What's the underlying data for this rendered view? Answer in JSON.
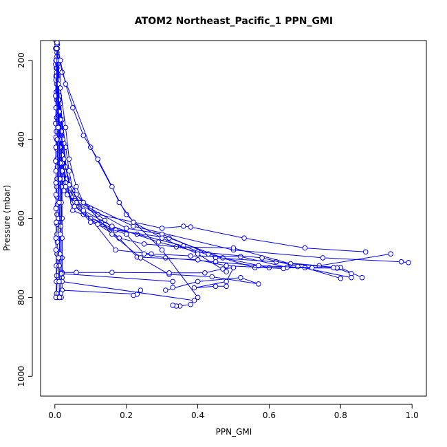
{
  "chart_data": {
    "type": "line",
    "title": "ATOM2 Northeast_Pacific_1 PPN_GMI",
    "xlabel": "PPN_GMI",
    "ylabel": "Pressure (mbar)",
    "xlim": [
      -0.04,
      1.04
    ],
    "ylim": [
      1050,
      150
    ],
    "y_reversed": true,
    "x_ticks": [
      0.0,
      0.2,
      0.4,
      0.6,
      0.8,
      1.0
    ],
    "x_tick_labels": [
      "0.0",
      "0.2",
      "0.4",
      "0.6",
      "0.8",
      "1.0"
    ],
    "y_ticks": [
      200,
      400,
      600,
      800,
      1000
    ],
    "y_tick_labels": [
      "200",
      "400",
      "600",
      "800",
      "1000"
    ],
    "grid": false,
    "marker": "open-circle",
    "series_color": "#0000ff",
    "series": [
      {
        "values": [
          [
            0.003,
            150
          ],
          [
            0.004,
            170
          ],
          [
            0.003,
            200
          ],
          [
            0.004,
            220
          ],
          [
            0.003,
            240
          ],
          [
            0.005,
            260
          ],
          [
            0.004,
            280
          ],
          [
            0.005,
            300
          ],
          [
            0.006,
            320
          ],
          [
            0.005,
            345
          ],
          [
            0.006,
            360
          ],
          [
            0.004,
            380
          ],
          [
            0.005,
            400
          ],
          [
            0.006,
            425
          ],
          [
            0.006,
            450
          ],
          [
            0.007,
            470
          ],
          [
            0.006,
            500
          ],
          [
            0.005,
            520
          ],
          [
            0.006,
            545
          ],
          [
            0.007,
            565
          ],
          [
            0.006,
            590
          ],
          [
            0.006,
            615
          ],
          [
            0.006,
            640
          ],
          [
            0.007,
            660
          ],
          [
            0.006,
            690
          ],
          [
            0.006,
            720
          ],
          [
            0.005,
            745
          ],
          [
            0.006,
            760
          ],
          [
            0.005,
            790
          ],
          [
            0.006,
            800
          ]
        ]
      },
      {
        "values": [
          [
            0.002,
            170
          ],
          [
            0.002,
            210
          ],
          [
            0.003,
            250
          ],
          [
            0.002,
            290
          ],
          [
            0.003,
            320
          ],
          [
            0.002,
            360
          ],
          [
            0.003,
            395
          ],
          [
            0.003,
            420
          ],
          [
            0.002,
            455
          ],
          [
            0.003,
            480
          ],
          [
            0.003,
            510
          ],
          [
            0.003,
            540
          ],
          [
            0.003,
            575
          ],
          [
            0.004,
            610
          ],
          [
            0.003,
            650
          ],
          [
            0.003,
            680
          ],
          [
            0.004,
            720
          ],
          [
            0.004,
            760
          ],
          [
            0.003,
            800
          ]
        ]
      },
      {
        "values": [
          [
            0.006,
            155
          ],
          [
            0.008,
            200
          ],
          [
            0.009,
            250
          ],
          [
            0.01,
            300
          ],
          [
            0.011,
            350
          ],
          [
            0.012,
            400
          ],
          [
            0.015,
            450
          ],
          [
            0.02,
            500
          ],
          [
            0.025,
            530
          ],
          [
            0.05,
            555
          ],
          [
            0.12,
            590
          ],
          [
            0.3,
            625
          ],
          [
            0.36,
            620
          ],
          [
            0.38,
            622
          ],
          [
            0.53,
            650
          ],
          [
            0.7,
            675
          ],
          [
            0.87,
            685
          ]
        ]
      },
      {
        "values": [
          [
            0.006,
            160
          ],
          [
            0.008,
            210
          ],
          [
            0.012,
            300
          ],
          [
            0.015,
            380
          ],
          [
            0.02,
            450
          ],
          [
            0.03,
            500
          ],
          [
            0.04,
            520
          ],
          [
            0.08,
            560
          ],
          [
            0.22,
            620
          ],
          [
            0.5,
            680
          ],
          [
            0.75,
            700
          ],
          [
            0.97,
            710
          ],
          [
            0.99,
            712
          ]
        ]
      },
      {
        "values": [
          [
            0.006,
            160
          ],
          [
            0.01,
            240
          ],
          [
            0.02,
            350
          ],
          [
            0.03,
            420
          ],
          [
            0.04,
            480
          ],
          [
            0.05,
            530
          ],
          [
            0.06,
            540
          ],
          [
            0.1,
            575
          ],
          [
            0.14,
            605
          ],
          [
            0.16,
            625
          ],
          [
            0.23,
            640
          ],
          [
            0.36,
            670
          ],
          [
            0.45,
            700
          ],
          [
            0.62,
            710
          ],
          [
            0.74,
            720
          ],
          [
            0.94,
            690
          ]
        ]
      },
      {
        "values": [
          [
            0.006,
            170
          ],
          [
            0.012,
            270
          ],
          [
            0.018,
            390
          ],
          [
            0.025,
            470
          ],
          [
            0.04,
            540
          ],
          [
            0.05,
            580
          ],
          [
            0.13,
            610
          ],
          [
            0.18,
            650
          ],
          [
            0.25,
            665
          ],
          [
            0.34,
            672
          ],
          [
            0.5,
            675
          ],
          [
            0.66,
            715
          ],
          [
            0.8,
            725
          ],
          [
            0.86,
            750
          ]
        ]
      },
      {
        "values": [
          [
            0.007,
            200
          ],
          [
            0.015,
            310
          ],
          [
            0.025,
            410
          ],
          [
            0.035,
            500
          ],
          [
            0.055,
            555
          ],
          [
            0.08,
            590
          ],
          [
            0.17,
            630
          ],
          [
            0.32,
            650
          ],
          [
            0.47,
            700
          ],
          [
            0.6,
            725
          ],
          [
            0.79,
            726
          ],
          [
            0.83,
            740
          ]
        ]
      },
      {
        "values": [
          [
            0.006,
            180
          ],
          [
            0.013,
            290
          ],
          [
            0.022,
            400
          ],
          [
            0.03,
            470
          ],
          [
            0.045,
            525
          ],
          [
            0.07,
            560
          ],
          [
            0.2,
            625
          ],
          [
            0.3,
            640
          ],
          [
            0.43,
            690
          ],
          [
            0.56,
            725
          ],
          [
            0.7,
            725
          ],
          [
            0.8,
            752
          ]
        ]
      },
      {
        "values": [
          [
            0.005,
            230
          ],
          [
            0.01,
            340
          ],
          [
            0.016,
            430
          ],
          [
            0.022,
            500
          ],
          [
            0.035,
            540
          ],
          [
            0.06,
            560
          ],
          [
            0.1,
            600
          ],
          [
            0.17,
            680
          ],
          [
            0.27,
            690
          ],
          [
            0.38,
            695
          ],
          [
            0.52,
            697
          ],
          [
            0.65,
            724
          ],
          [
            0.79,
            725
          ]
        ]
      },
      {
        "values": [
          [
            0.006,
            190
          ],
          [
            0.01,
            280
          ],
          [
            0.018,
            380
          ],
          [
            0.025,
            450
          ],
          [
            0.04,
            515
          ],
          [
            0.08,
            580
          ],
          [
            0.16,
            620
          ],
          [
            0.29,
            660
          ],
          [
            0.4,
            685
          ],
          [
            0.58,
            700
          ],
          [
            0.68,
            722
          ],
          [
            0.83,
            750
          ]
        ]
      },
      {
        "values": [
          [
            0.006,
            220
          ],
          [
            0.012,
            330
          ],
          [
            0.02,
            440
          ],
          [
            0.03,
            510
          ],
          [
            0.05,
            560
          ],
          [
            0.1,
            610
          ],
          [
            0.2,
            640
          ],
          [
            0.25,
            690
          ],
          [
            0.31,
            700
          ],
          [
            0.45,
            710
          ],
          [
            0.57,
            720
          ],
          [
            0.72,
            725
          ],
          [
            0.78,
            725
          ]
        ]
      },
      {
        "values": [
          [
            0.005,
            240
          ],
          [
            0.011,
            360
          ],
          [
            0.02,
            460
          ],
          [
            0.03,
            520
          ],
          [
            0.055,
            570
          ],
          [
            0.12,
            615
          ],
          [
            0.18,
            650
          ],
          [
            0.23,
            698
          ],
          [
            0.4,
            705
          ],
          [
            0.48,
            720
          ],
          [
            0.64,
            727
          ]
        ]
      },
      {
        "values": [
          [
            0.007,
            160
          ],
          [
            0.02,
            230
          ],
          [
            0.1,
            420
          ],
          [
            0.2,
            590
          ],
          [
            0.3,
            680
          ],
          [
            0.4,
            800
          ]
        ]
      },
      {
        "values": [
          [
            0.006,
            170
          ],
          [
            0.015,
            270
          ],
          [
            0.03,
            370
          ],
          [
            0.04,
            450
          ],
          [
            0.06,
            520
          ],
          [
            0.08,
            560
          ],
          [
            0.16,
            640
          ],
          [
            0.24,
            700
          ],
          [
            0.32,
            742
          ],
          [
            0.44,
            748
          ],
          [
            0.57,
            766
          ],
          [
            0.52,
            750
          ],
          [
            0.4,
            760
          ],
          [
            0.31,
            782
          ]
        ]
      },
      {
        "values": [
          [
            0.006,
            150
          ],
          [
            0.015,
            200
          ],
          [
            0.03,
            260
          ],
          [
            0.05,
            320
          ],
          [
            0.08,
            390
          ],
          [
            0.12,
            450
          ],
          [
            0.16,
            520
          ],
          [
            0.18,
            560
          ],
          [
            0.22,
            610
          ],
          [
            0.3,
            650
          ],
          [
            0.4,
            690
          ],
          [
            0.48,
            735
          ]
        ]
      },
      {
        "values": [
          [
            0.006,
            150
          ],
          [
            0.01,
            250
          ],
          [
            0.015,
            350
          ],
          [
            0.02,
            480
          ],
          [
            0.02,
            600
          ],
          [
            0.02,
            737
          ],
          [
            0.06,
            737
          ],
          [
            0.16,
            737
          ],
          [
            0.32,
            738
          ],
          [
            0.42,
            738
          ],
          [
            0.47,
            728
          ],
          [
            0.5,
            725
          ],
          [
            0.48,
            760
          ],
          [
            0.39,
            776
          ],
          [
            0.45,
            772
          ],
          [
            0.48,
            772
          ]
        ]
      },
      {
        "values": [
          [
            0.006,
            160
          ],
          [
            0.01,
            300
          ],
          [
            0.014,
            420
          ],
          [
            0.018,
            520
          ],
          [
            0.02,
            600
          ],
          [
            0.02,
            700
          ],
          [
            0.02,
            750
          ],
          [
            0.02,
            782
          ],
          [
            0.23,
            792
          ],
          [
            0.24,
            782
          ],
          [
            0.22,
            795
          ]
        ]
      },
      {
        "values": [
          [
            0.007,
            170
          ],
          [
            0.012,
            330
          ],
          [
            0.015,
            460
          ],
          [
            0.018,
            560
          ],
          [
            0.02,
            650
          ],
          [
            0.02,
            740
          ],
          [
            0.33,
            760
          ],
          [
            0.33,
            775
          ]
        ]
      },
      {
        "values": [
          [
            0.006,
            155
          ],
          [
            0.009,
            260
          ],
          [
            0.012,
            400
          ],
          [
            0.014,
            500
          ],
          [
            0.016,
            620
          ],
          [
            0.017,
            740
          ],
          [
            0.02,
            760
          ],
          [
            0.39,
            808
          ],
          [
            0.38,
            818
          ],
          [
            0.35,
            822
          ],
          [
            0.34,
            822
          ],
          [
            0.33,
            820
          ]
        ]
      },
      {
        "values": [
          [
            0.004,
            200
          ],
          [
            0.007,
            400
          ],
          [
            0.01,
            600
          ],
          [
            0.014,
            690
          ],
          [
            0.012,
            720
          ],
          [
            0.016,
            790
          ],
          [
            0.018,
            800
          ]
        ]
      },
      {
        "values": [
          [
            0.005,
            170
          ],
          [
            0.009,
            370
          ],
          [
            0.012,
            560
          ],
          [
            0.015,
            640
          ],
          [
            0.01,
            700
          ],
          [
            0.012,
            760
          ],
          [
            0.013,
            800
          ]
        ]
      }
    ]
  }
}
